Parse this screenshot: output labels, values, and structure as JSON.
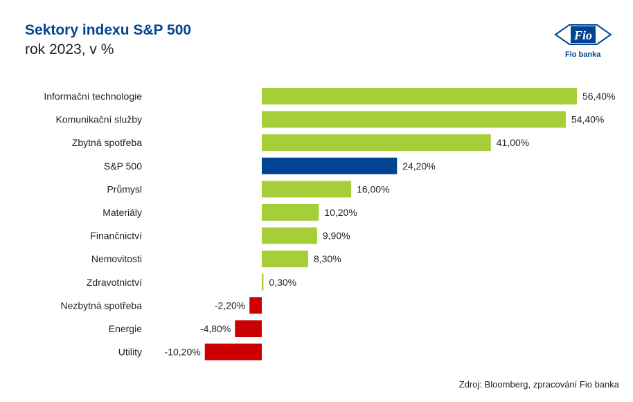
{
  "title": "Sektory indexu S&P 500",
  "subtitle": "rok 2023, v %",
  "logo": {
    "text": "Fio",
    "caption": "Fio banka"
  },
  "source": "Zdroj: Bloomberg, zpracování Fio banka",
  "colors": {
    "positive": "#A6CE39",
    "highlight": "#004494",
    "negative": "#CC0000",
    "title": "#004494"
  },
  "chart_data": {
    "type": "bar",
    "orientation": "horizontal",
    "categories": [
      "Informační technologie",
      "Komunikační služby",
      "Zbytná spotřeba",
      "S&P 500",
      "Průmysl",
      "Materiály",
      "Finančnictví",
      "Nemovitosti",
      "Zdravotnictví",
      "Nezbytná spotřeba",
      "Energie",
      "Utility"
    ],
    "values": [
      56.4,
      54.4,
      41.0,
      24.2,
      16.0,
      10.2,
      9.9,
      8.3,
      0.3,
      -2.2,
      -4.8,
      -10.2
    ],
    "labels": [
      "56,40%",
      "54,40%",
      "41,00%",
      "24,20%",
      "16,00%",
      "10,20%",
      "9,90%",
      "8,30%",
      "0,30%",
      "-2,20%",
      "-4,80%",
      "-10,20%"
    ],
    "highlight_category": "S&P 500",
    "xlim": [
      -10.2,
      56.4
    ],
    "grid": false,
    "legend": "none"
  }
}
